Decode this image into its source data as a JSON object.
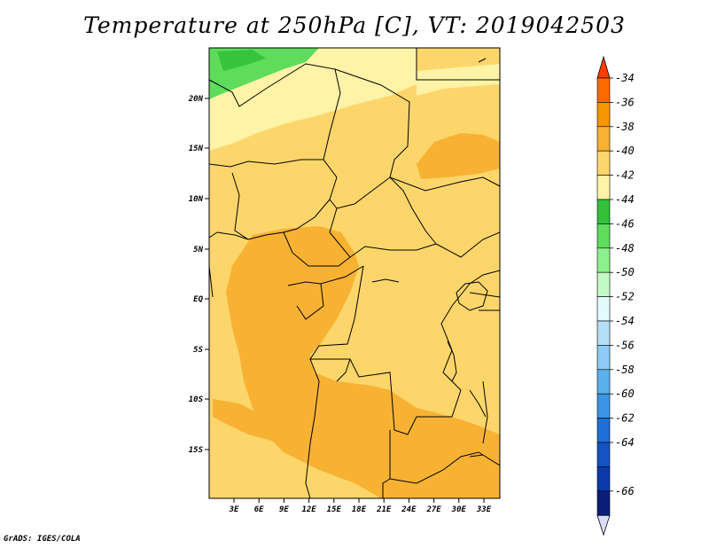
{
  "title": "Temperature at 250hPa [C], VT: 2019042503",
  "credit": "GrADS: IGES/COLA",
  "map": {
    "lat_labels": [
      "20N",
      "15N",
      "10N",
      "5N",
      "EQ",
      "5S",
      "10S",
      "15S"
    ],
    "lon_labels": [
      "3E",
      "6E",
      "9E",
      "12E",
      "15E",
      "18E",
      "21E",
      "24E",
      "27E",
      "30E",
      "33E"
    ],
    "fill_colors": {
      "warm": "#f7b233",
      "mid": "#fdd66b",
      "cool": "#fef3a6",
      "green_light": "#5fdc5c",
      "green_dark": "#35c43c"
    }
  },
  "colorbar": {
    "labels": [
      "-34",
      "-36",
      "-38",
      "-40",
      "-42",
      "-44",
      "-46",
      "-48",
      "-50",
      "-52",
      "-54",
      "-56",
      "-58",
      "-60",
      "-62",
      "-64",
      "-66"
    ],
    "colors": [
      "#fe3c00",
      "#fe6a00",
      "#f99500",
      "#f7b233",
      "#fdd66b",
      "#fef3a6",
      "#33c13a",
      "#5fdc5c",
      "#8cf08c",
      "#c3fac3",
      "#e2fbfc",
      "#b5ddf7",
      "#8dcbf4",
      "#5ab1ec",
      "#3c95e6",
      "#1e6fd8",
      "#1552c2",
      "#0b3aaa",
      "#0a1e78",
      "#d8dcf8"
    ]
  }
}
